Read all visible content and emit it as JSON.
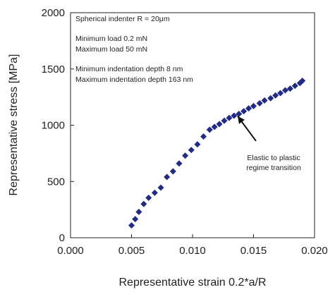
{
  "chart_data": {
    "type": "scatter",
    "xlabel": "Representative strain 0.2*a/R",
    "ylabel": "Representative stress [MPa]",
    "xlim": [
      0.0,
      0.02
    ],
    "ylim": [
      0,
      2000
    ],
    "x_ticks": [
      0.0,
      0.005,
      0.01,
      0.015,
      0.02
    ],
    "x_tick_labels": [
      "0.000",
      "0.005",
      "0.010",
      "0.015",
      "0.020"
    ],
    "y_ticks": [
      0,
      500,
      1000,
      1500,
      2000
    ],
    "y_tick_labels": [
      "0",
      "500",
      "1000",
      "1500",
      "2000"
    ],
    "grid": false,
    "marker_color": "#1f2a8a",
    "annotations": {
      "info_lines": [
        "Spherical indenter R = 20μm",
        "Minimum load 0.2 mN",
        "Maximum load 50 mN",
        "Minimum indentation depth 8 nm",
        "Maximum indentation depth 163 nm"
      ],
      "arrow_label_lines": [
        "Elastic to plastic",
        "regime transition"
      ],
      "arrow_tip": {
        "x": 0.0137,
        "y": 1080
      },
      "arrow_tail": {
        "x": 0.0152,
        "y": 860
      }
    },
    "series": [
      {
        "x": [
          0.005,
          0.0053,
          0.0056,
          0.006,
          0.0064,
          0.0069,
          0.0074,
          0.0079,
          0.0084,
          0.0089,
          0.0094,
          0.0099,
          0.0104,
          0.0109,
          0.0114,
          0.0118,
          0.0122,
          0.0126,
          0.013,
          0.0134,
          0.0138,
          0.0142,
          0.0146,
          0.015,
          0.0155,
          0.0159,
          0.0164,
          0.0168,
          0.0172,
          0.0176,
          0.018,
          0.0184,
          0.0188,
          0.019
        ],
        "y": [
          110,
          165,
          230,
          300,
          355,
          400,
          445,
          540,
          590,
          660,
          730,
          780,
          830,
          900,
          960,
          985,
          1010,
          1040,
          1065,
          1085,
          1100,
          1125,
          1150,
          1170,
          1195,
          1220,
          1240,
          1265,
          1285,
          1310,
          1325,
          1350,
          1375,
          1395
        ]
      }
    ]
  }
}
